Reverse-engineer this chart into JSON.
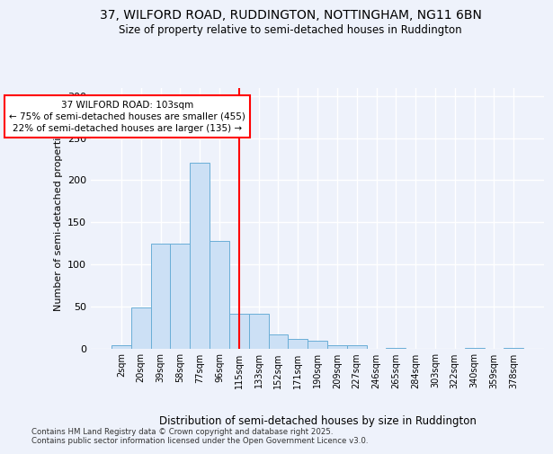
{
  "title_line1": "37, WILFORD ROAD, RUDDINGTON, NOTTINGHAM, NG11 6BN",
  "title_line2": "Size of property relative to semi-detached houses in Ruddington",
  "xlabel": "Distribution of semi-detached houses by size in Ruddington",
  "ylabel": "Number of semi-detached properties",
  "categories": [
    "2sqm",
    "20sqm",
    "39sqm",
    "58sqm",
    "77sqm",
    "96sqm",
    "115sqm",
    "133sqm",
    "152sqm",
    "171sqm",
    "190sqm",
    "209sqm",
    "227sqm",
    "246sqm",
    "265sqm",
    "284sqm",
    "303sqm",
    "322sqm",
    "340sqm",
    "359sqm",
    "378sqm"
  ],
  "values": [
    4,
    49,
    125,
    125,
    221,
    128,
    41,
    41,
    17,
    11,
    9,
    4,
    4,
    0,
    1,
    0,
    0,
    0,
    1,
    0,
    1
  ],
  "bar_color": "#cce0f5",
  "bar_edge_color": "#6aaed6",
  "vline_x": 6.0,
  "vline_color": "red",
  "annotation_title": "37 WILFORD ROAD: 103sqm",
  "annotation_line2": "← 75% of semi-detached houses are smaller (455)",
  "annotation_line3": "22% of semi-detached houses are larger (135) →",
  "annotation_box_color": "red",
  "ylim": [
    0,
    310
  ],
  "yticks": [
    0,
    50,
    100,
    150,
    200,
    250,
    300
  ],
  "footer": "Contains HM Land Registry data © Crown copyright and database right 2025.\nContains public sector information licensed under the Open Government Licence v3.0.",
  "background_color": "#eef2fb",
  "grid_color": "white"
}
